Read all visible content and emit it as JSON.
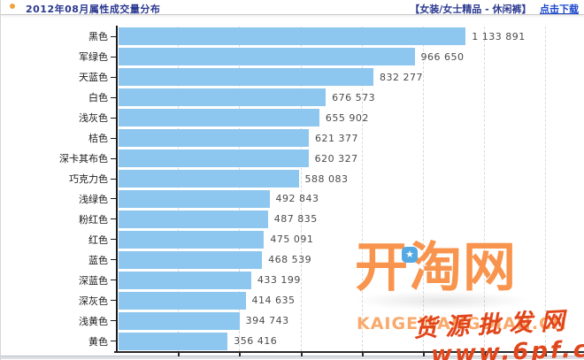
{
  "header": {
    "title": "2012年08月属性成交量分布",
    "category": "【女装/女士精品 - 休闲裤】",
    "download_link": "点击下载"
  },
  "chart_data": {
    "type": "bar",
    "orientation": "horizontal",
    "title": "2012年08月属性成交量分布",
    "categories": [
      "黑色",
      "军绿色",
      "天蓝色",
      "白色",
      "浅灰色",
      "桔色",
      "深卡其布色",
      "巧克力色",
      "浅绿色",
      "粉红色",
      "红色",
      "蓝色",
      "深蓝色",
      "深灰色",
      "浅黄色",
      "黄色"
    ],
    "values": [
      1133891,
      966650,
      832277,
      676573,
      655902,
      621377,
      620327,
      588083,
      492843,
      487835,
      475091,
      468539,
      433199,
      414635,
      394743,
      356416
    ],
    "value_labels": [
      "1 133 891",
      "966 650",
      "832 277",
      "676 573",
      "655 902",
      "621 377",
      "620 327",
      "588 083",
      "492 843",
      "487 835",
      "475 091",
      "468 539",
      "433 199",
      "414 635",
      "394 743",
      "356 416"
    ],
    "xlim": [
      0,
      1500000
    ],
    "gridline_interval": 200000,
    "grid": "vertical-dashed",
    "legend": "none",
    "bar_color": "#8dc6ef",
    "axis_color": "#1c1c1c"
  },
  "watermark": {
    "logo_text": "开淘网",
    "badge_icon": "star-icon",
    "badge_glyph": "★",
    "logo_subtext": "KAIGEWANGDIAN.CN",
    "stamp_line1": "货源批发网",
    "stamp_line2": "www.6pf.cn"
  }
}
